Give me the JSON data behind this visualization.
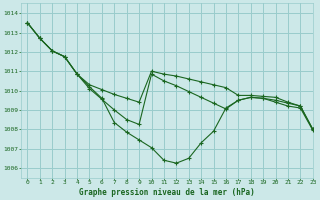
{
  "title": "Graphe pression niveau de la mer (hPa)",
  "bg_color": "#cce8e8",
  "grid_color": "#99cccc",
  "line_color": "#1a6620",
  "xlim": [
    -0.5,
    23
  ],
  "ylim": [
    1005.5,
    1014.5
  ],
  "yticks": [
    1006,
    1007,
    1008,
    1009,
    1010,
    1011,
    1012,
    1013,
    1014
  ],
  "xticks": [
    0,
    1,
    2,
    3,
    4,
    5,
    6,
    7,
    8,
    9,
    10,
    11,
    12,
    13,
    14,
    15,
    16,
    17,
    18,
    19,
    20,
    21,
    22,
    23
  ],
  "series1": [
    1013.5,
    1012.7,
    1012.05,
    1011.75,
    1010.85,
    1010.3,
    1010.05,
    1009.8,
    1009.6,
    1009.4,
    1011.0,
    1010.85,
    1010.75,
    1010.6,
    1010.45,
    1010.3,
    1010.15,
    1009.75,
    1009.75,
    1009.7,
    1009.65,
    1009.4,
    1009.2,
    1008.0
  ],
  "series2": [
    1013.5,
    1012.7,
    1012.05,
    1011.75,
    1010.85,
    1010.1,
    1009.55,
    1009.0,
    1008.5,
    1008.25,
    1010.85,
    1010.5,
    1010.25,
    1009.95,
    1009.65,
    1009.35,
    1009.05,
    1009.5,
    1009.65,
    1009.6,
    1009.5,
    1009.35,
    1009.2,
    1008.0
  ],
  "series3": [
    1013.5,
    1012.7,
    1012.05,
    1011.75,
    1010.85,
    1010.2,
    1009.6,
    1008.35,
    1007.85,
    1007.45,
    1007.05,
    1006.4,
    1006.25,
    1006.5,
    1007.3,
    1007.9,
    1009.1,
    1009.5,
    1009.65,
    1009.6,
    1009.4,
    1009.2,
    1009.1,
    1007.95
  ],
  "marker": "+"
}
